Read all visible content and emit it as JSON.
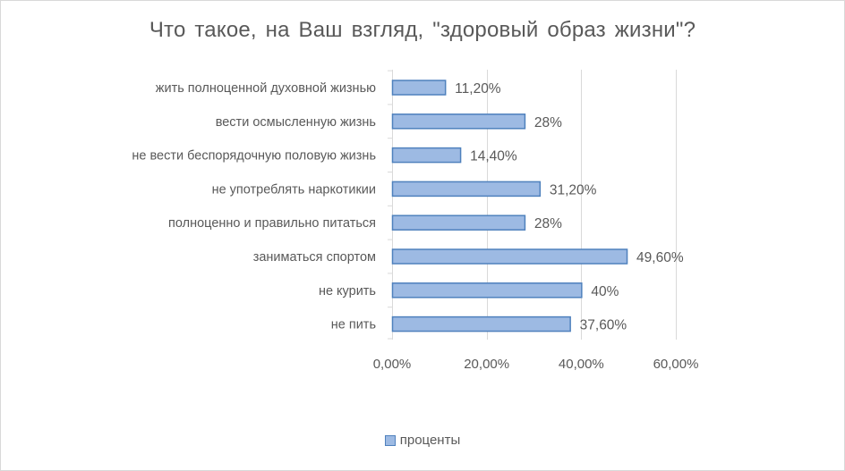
{
  "chart_data": {
    "type": "bar",
    "orientation": "horizontal",
    "title": "Что такое,  на Ваш  взгляд,  \"здоровый  образ  жизни\"?",
    "categories": [
      "жить полноценной духовной жизнью",
      "вести осмысленную жизнь",
      "не вести беспорядочную половую жизнь",
      "не употреблять наркотикии",
      "полноценно и правильно питаться",
      "заниматься спортом",
      "не курить",
      "не пить"
    ],
    "series": [
      {
        "name": "проценты",
        "values": [
          11.2,
          28,
          14.4,
          31.2,
          28,
          49.6,
          40,
          37.6
        ],
        "data_labels": [
          "11,20%",
          "28%",
          "14,40%",
          "31,20%",
          "28%",
          "49,60%",
          "40%",
          "37,60%"
        ]
      }
    ],
    "xlim": [
      0,
      60
    ],
    "x_ticks": [
      0,
      20,
      40,
      60
    ],
    "x_tick_labels": [
      "0,00%",
      "20,00%",
      "40,00%",
      "60,00%"
    ],
    "grid": "vertical",
    "legend_position": "bottom",
    "colors": {
      "bar_fill": "#9dbae3",
      "bar_stroke": "#4f81bd",
      "grid": "#d9d9d9",
      "text": "#595959"
    }
  }
}
